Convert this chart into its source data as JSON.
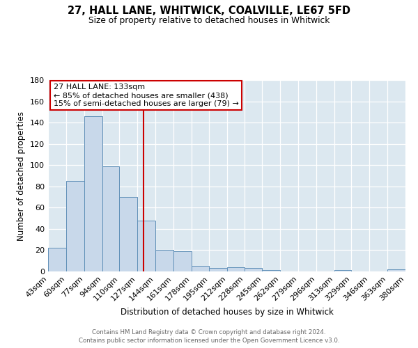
{
  "title": "27, HALL LANE, WHITWICK, COALVILLE, LE67 5FD",
  "subtitle": "Size of property relative to detached houses in Whitwick",
  "xlabel": "Distribution of detached houses by size in Whitwick",
  "ylabel": "Number of detached properties",
  "bar_labels": [
    "43sqm",
    "60sqm",
    "77sqm",
    "94sqm",
    "110sqm",
    "127sqm",
    "144sqm",
    "161sqm",
    "178sqm",
    "195sqm",
    "212sqm",
    "228sqm",
    "245sqm",
    "262sqm",
    "279sqm",
    "296sqm",
    "313sqm",
    "329sqm",
    "346sqm",
    "363sqm",
    "380sqm"
  ],
  "bar_values": [
    22,
    85,
    146,
    99,
    70,
    48,
    20,
    19,
    5,
    3,
    4,
    3,
    1,
    0,
    0,
    0,
    1,
    0,
    0,
    2,
    0
  ],
  "bin_edges": [
    43,
    60,
    77,
    94,
    110,
    127,
    144,
    161,
    178,
    195,
    212,
    228,
    245,
    262,
    279,
    296,
    313,
    329,
    346,
    363,
    380
  ],
  "bar_color": "#c8d8ea",
  "bar_edge_color": "#6090b8",
  "vline_x": 133,
  "vline_color": "#cc0000",
  "annotation_title": "27 HALL LANE: 133sqm",
  "annotation_line1": "← 85% of detached houses are smaller (438)",
  "annotation_line2": "15% of semi-detached houses are larger (79) →",
  "annotation_box_color": "#ffffff",
  "annotation_box_edge": "#cc0000",
  "ylim": [
    0,
    180
  ],
  "yticks": [
    0,
    20,
    40,
    60,
    80,
    100,
    120,
    140,
    160,
    180
  ],
  "bg_color": "#dce8f0",
  "fig_bg_color": "#ffffff",
  "footer_line1": "Contains HM Land Registry data © Crown copyright and database right 2024.",
  "footer_line2": "Contains public sector information licensed under the Open Government Licence v3.0."
}
